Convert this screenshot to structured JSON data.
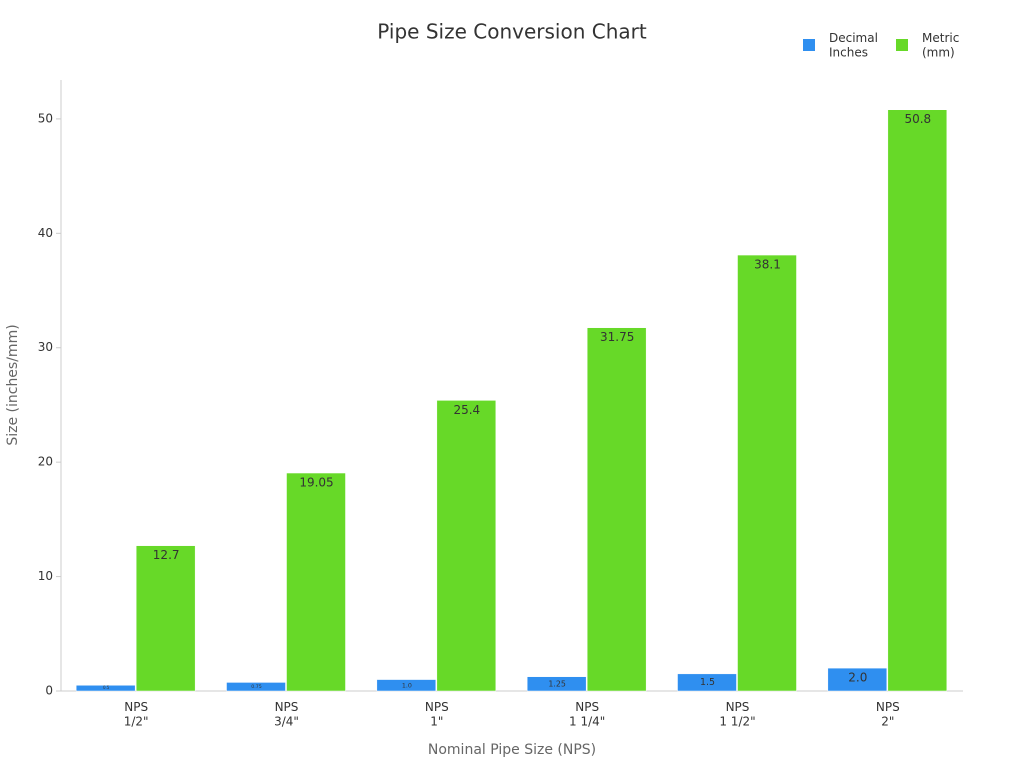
{
  "chart_data": {
    "type": "bar",
    "title": "Pipe Size Conversion Chart",
    "x_label": "Nominal Pipe Size (NPS)",
    "y_label": "Size (inches/mm)",
    "categories": [
      "NPS\n1/2\"",
      "NPS\n3/4\"",
      "NPS\n1\"",
      "NPS\n1 1/4\"",
      "NPS\n1 1/2\"",
      "NPS\n2\""
    ],
    "series": [
      {
        "name": "Decimal\nInches",
        "color": "#2f8ff0",
        "values": [
          0.5,
          0.75,
          1.0,
          1.25,
          1.5,
          2.0
        ],
        "value_labels": [
          "0.5",
          "0.75",
          "1.0",
          "1.25",
          "1.5",
          "2.0"
        ]
      },
      {
        "name": "Metric\n(mm)",
        "color": "#67d928",
        "values": [
          12.7,
          19.05,
          25.4,
          31.75,
          38.1,
          50.8
        ]
      }
    ],
    "ylim": [
      0,
      53.4
    ],
    "yticks": [
      0,
      10,
      20,
      30,
      40,
      50
    ],
    "grid": false,
    "legend": "top-right"
  }
}
